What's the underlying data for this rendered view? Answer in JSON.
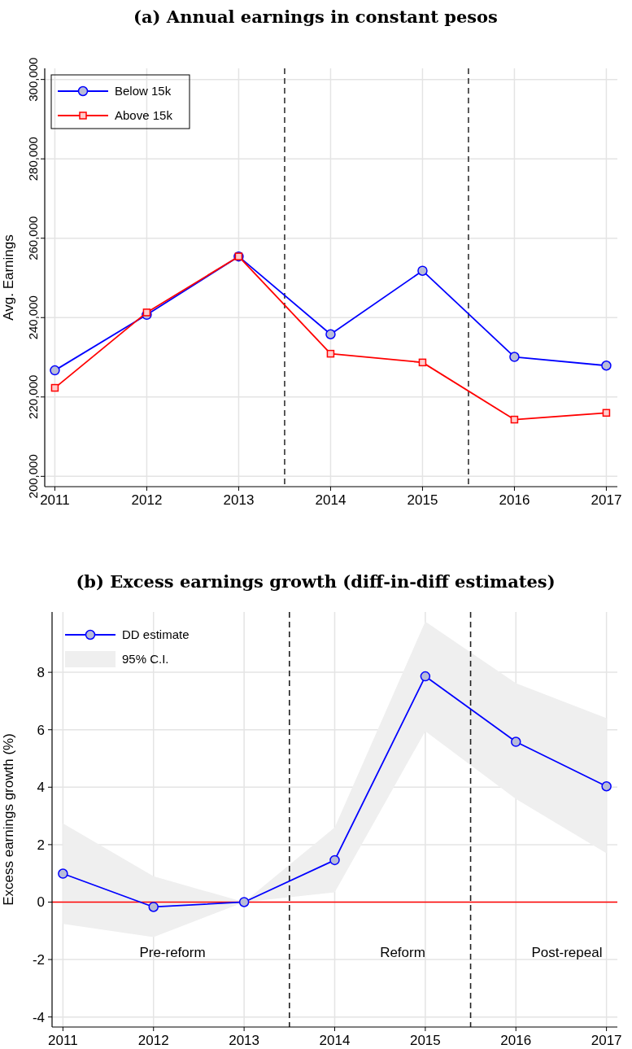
{
  "chart_data": [
    {
      "type": "line",
      "title": "(a) Annual earnings in constant pesos",
      "ylabel": "Avg. Earnings",
      "x": [
        2011,
        2012,
        2013,
        2014,
        2015,
        2016,
        2017
      ],
      "series": [
        {
          "name": "Below 15k",
          "color": "#0000ff",
          "marker": "circle",
          "values": [
            226700,
            240700,
            255400,
            235800,
            251800,
            230100,
            227900
          ]
        },
        {
          "name": "Above 15k",
          "color": "#ff0000",
          "marker": "square",
          "values": [
            222300,
            241300,
            255400,
            230900,
            228700,
            214300,
            216000
          ]
        }
      ],
      "xlim": [
        2010.89,
        2017.12
      ],
      "xticks": [
        2011,
        2012,
        2013,
        2014,
        2015,
        2016,
        2017
      ],
      "ylim": [
        197400,
        302800
      ],
      "yticks": [
        {
          "value": 200000,
          "label": "200,000"
        },
        {
          "value": 220000,
          "label": "220,000"
        },
        {
          "value": 240000,
          "label": "240,000"
        },
        {
          "value": 260000,
          "label": "260,000"
        },
        {
          "value": 280000,
          "label": "280,000"
        },
        {
          "value": 300000,
          "label": "300,000"
        }
      ],
      "ref_lines": [
        {
          "axis": "x",
          "value": 2013.5,
          "color": "#333333",
          "line_style": "dashed"
        },
        {
          "axis": "x",
          "value": 2015.5,
          "color": "#333333",
          "line_style": "dashed"
        }
      ],
      "grid": true,
      "legend": "top left",
      "line_style": "solid"
    },
    {
      "type": "line",
      "title": "(b) Excess earnings growth (diff-in-diff estimates)",
      "ylabel": "Excess earnings growth (%)",
      "x": [
        2011,
        2012,
        2013,
        2014,
        2015,
        2016,
        2017
      ],
      "series": [
        {
          "name": "DD estimate",
          "color": "#0000ff",
          "marker": "circle",
          "values": [
            0.99,
            -0.17,
            0,
            1.46,
            7.86,
            5.58,
            4.03
          ],
          "lower": [
            -0.76,
            -1.22,
            0,
            0.34,
            5.95,
            3.59,
            1.7
          ],
          "upper": [
            2.74,
            0.9,
            0,
            2.6,
            9.77,
            7.62,
            6.4
          ]
        }
      ],
      "xlim": [
        2010.88,
        2017.12
      ],
      "xticks": [
        2011,
        2012,
        2013,
        2014,
        2015,
        2016,
        2017
      ],
      "ylim": [
        -4.35,
        10.1
      ],
      "yticks": [
        -4,
        -2,
        0,
        2,
        4,
        6,
        8
      ],
      "ref_lines": [
        {
          "axis": "x",
          "value": 2013.5,
          "color": "#222222",
          "line_style": "dashed"
        },
        {
          "axis": "x",
          "value": 2015.5,
          "color": "#222222",
          "line_style": "dashed"
        },
        {
          "axis": "y",
          "value": 0,
          "color": "#ff0000",
          "line_style": "solid"
        }
      ],
      "annotations": [
        "95% C.I.",
        "Pre-reform",
        "Reform",
        "Post-repeal"
      ],
      "grid": true,
      "legend": "top left",
      "line_style": "solid"
    }
  ]
}
